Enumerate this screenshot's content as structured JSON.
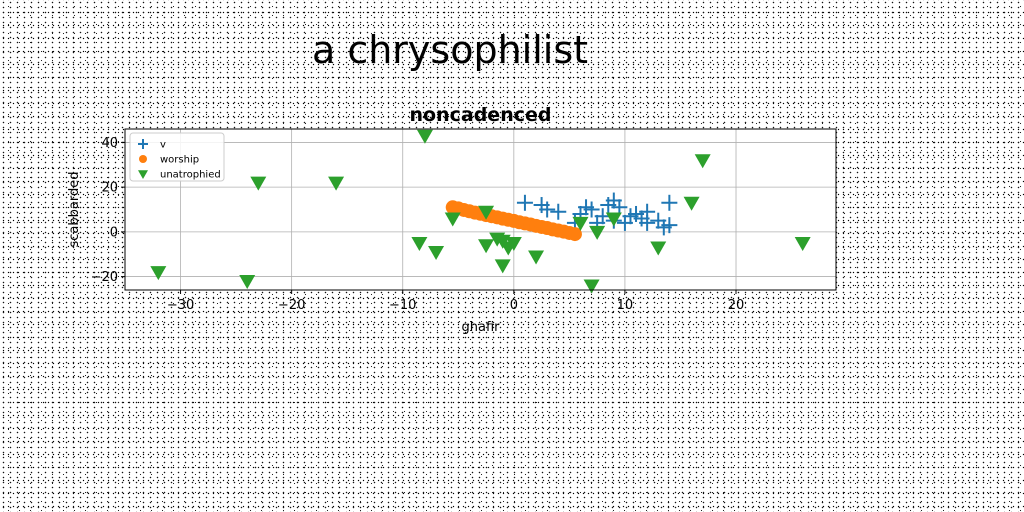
{
  "figure_title": "a chrysophilist",
  "chart_data": {
    "type": "scatter",
    "title": "noncadenced",
    "xlabel": "ghafir",
    "ylabel": "scabbarded",
    "xlim": [
      -35,
      29
    ],
    "ylim": [
      -26,
      46
    ],
    "xticks": [
      -30,
      -20,
      -10,
      0,
      10,
      20
    ],
    "yticks": [
      -20,
      0,
      20,
      40
    ],
    "xtick_labels": [
      "−30",
      "−20",
      "−10",
      "0",
      "10",
      "20"
    ],
    "ytick_labels": [
      "−20",
      "0",
      "20",
      "40"
    ],
    "grid": true,
    "legend_position": "top-left",
    "series": [
      {
        "name": "v",
        "marker": "plus",
        "color": "#1f77b4",
        "points": [
          [
            1,
            13
          ],
          [
            2.5,
            12
          ],
          [
            3,
            10
          ],
          [
            4,
            9
          ],
          [
            6,
            8
          ],
          [
            6.5,
            11
          ],
          [
            7,
            10
          ],
          [
            8,
            7
          ],
          [
            8.5,
            12
          ],
          [
            9,
            14
          ],
          [
            9.5,
            11
          ],
          [
            9,
            5
          ],
          [
            10,
            4
          ],
          [
            11,
            8
          ],
          [
            11.5,
            6
          ],
          [
            12,
            9
          ],
          [
            12,
            4
          ],
          [
            13,
            5
          ],
          [
            13.5,
            2
          ],
          [
            14,
            13
          ],
          [
            14,
            3
          ],
          [
            7.5,
            4
          ],
          [
            5.5,
            4
          ],
          [
            10.5,
            7
          ]
        ]
      },
      {
        "name": "worship",
        "marker": "circle",
        "color": "#ff7f0e",
        "points": [
          [
            -5.5,
            11
          ],
          [
            -5,
            10.5
          ],
          [
            -4.5,
            9.8
          ],
          [
            -4,
            9.2
          ],
          [
            -3.5,
            8.6
          ],
          [
            -3,
            8.1
          ],
          [
            -2.5,
            7.5
          ],
          [
            -2,
            7
          ],
          [
            -1.5,
            6.5
          ],
          [
            -1,
            5.9
          ],
          [
            -0.5,
            5.4
          ],
          [
            0,
            4.9
          ],
          [
            0.5,
            4.3
          ],
          [
            1,
            3.8
          ],
          [
            1.5,
            3.3
          ],
          [
            2,
            2.7
          ],
          [
            2.5,
            2.2
          ],
          [
            3,
            1.7
          ],
          [
            3.5,
            1.1
          ],
          [
            4,
            0.6
          ],
          [
            4.5,
            0.1
          ],
          [
            5,
            -0.5
          ],
          [
            5.5,
            -1
          ]
        ]
      },
      {
        "name": "unatrophied",
        "marker": "triangle-down",
        "color": "#2ca02c",
        "points": [
          [
            -8,
            43
          ],
          [
            -32,
            -18
          ],
          [
            -24,
            -22
          ],
          [
            -23,
            22
          ],
          [
            -16,
            22
          ],
          [
            -8.5,
            -5
          ],
          [
            -7,
            -9
          ],
          [
            -5.5,
            6
          ],
          [
            -2.5,
            9
          ],
          [
            -2.5,
            -6
          ],
          [
            -1.5,
            -3
          ],
          [
            -1,
            -4
          ],
          [
            -1,
            -15
          ],
          [
            -0.5,
            -7
          ],
          [
            0,
            -5
          ],
          [
            2,
            -11
          ],
          [
            6,
            4
          ],
          [
            7,
            -24
          ],
          [
            7.5,
            0
          ],
          [
            9,
            6
          ],
          [
            13,
            -7
          ],
          [
            16,
            13
          ],
          [
            17,
            32
          ],
          [
            26,
            -5
          ]
        ]
      }
    ]
  }
}
